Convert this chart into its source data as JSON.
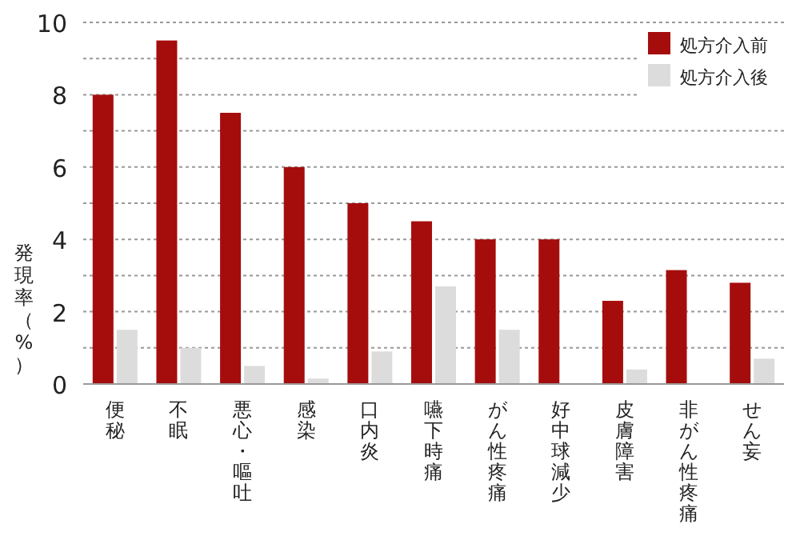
{
  "chart_data": {
    "type": "bar",
    "ylabel": "発現率（%）",
    "categories": [
      "便秘",
      "不眠",
      "悪心・嘔吐",
      "感染",
      "口内炎",
      "嚥下時痛",
      "がん性疼痛",
      "好中球減少",
      "皮膚障害",
      "非がん性疼痛",
      "せん妄"
    ],
    "series": [
      {
        "name": "処方介入前",
        "color": "#a50d0d",
        "values": [
          8,
          9.5,
          7.5,
          6,
          5,
          4.5,
          4,
          4,
          2.3,
          3.15,
          2.8
        ]
      },
      {
        "name": "処方介入後",
        "color": "#dcdcdc",
        "values": [
          1.5,
          1.0,
          0.5,
          0.15,
          0.9,
          2.7,
          1.5,
          null,
          0.4,
          null,
          0.7
        ]
      }
    ],
    "ylim": [
      0,
      10
    ],
    "yticks": [
      0,
      {
        "value": 1,
        "label": null
      },
      2,
      {
        "value": 3,
        "label": null
      },
      4,
      {
        "value": 5,
        "label": null
      },
      6,
      {
        "value": 7,
        "label": null
      },
      8,
      {
        "value": 9,
        "label": null
      },
      10
    ],
    "grid": "y",
    "legend": "top right"
  }
}
